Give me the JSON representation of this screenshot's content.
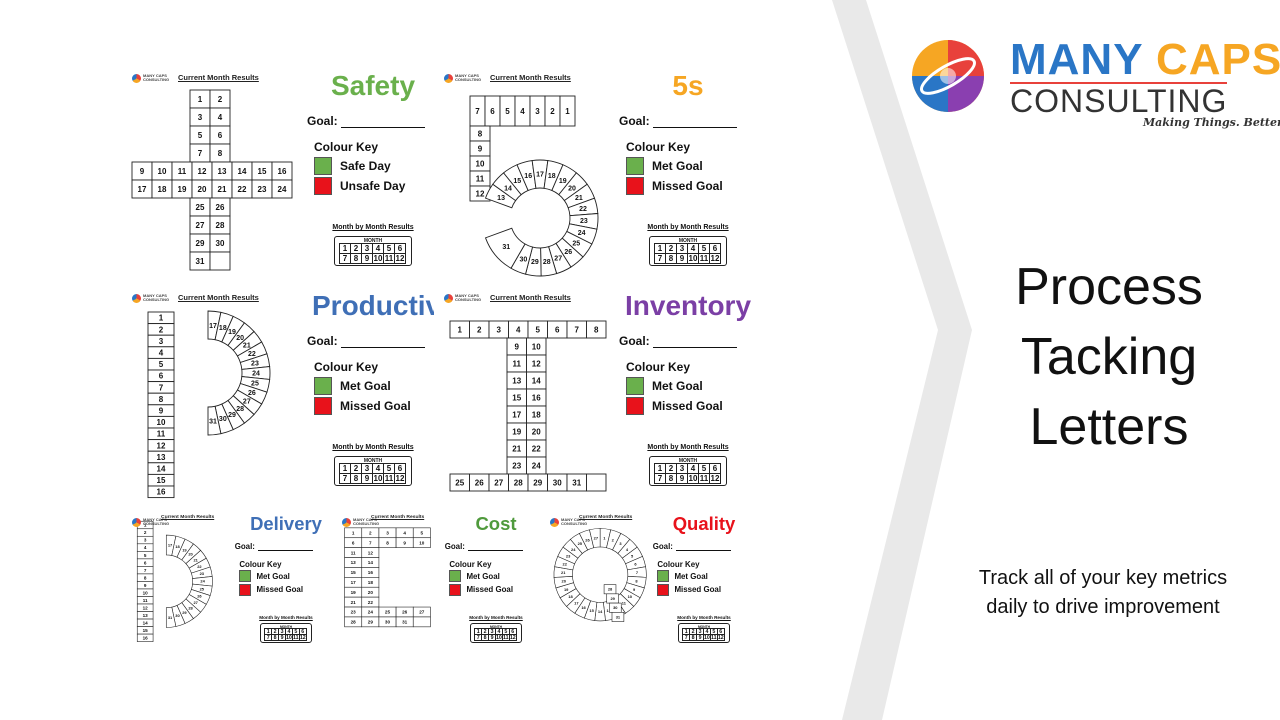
{
  "logo": {
    "word1": "MANY",
    "word2": "CAPS",
    "word3": "CONSULTING",
    "tagline": "Making Things. Better."
  },
  "headline": [
    "Process",
    "Tacking",
    "Letters"
  ],
  "subtitle": [
    "Track all of your key metrics",
    "daily to drive improvement"
  ],
  "colors": {
    "green": "#6ab04c",
    "red": "#e8121b",
    "chevron": "#e9e9e9"
  },
  "panel_common": {
    "current_month": "Current Month Results",
    "goal_label": "Goal:",
    "key_label": "Colour Key",
    "month_by_month": "Month by Month Results",
    "month_label": "MONTH",
    "months_row1": [
      "1",
      "2",
      "3",
      "4",
      "5",
      "6"
    ],
    "months_row2": [
      "7",
      "8",
      "9",
      "10",
      "11",
      "12"
    ],
    "mini_logo": "MANY CAPS CONSULTING"
  },
  "panels": [
    {
      "id": "safety",
      "title": "Safety",
      "title_color": "#6ab04c",
      "key_green": "Safe Day",
      "key_red": "Unsafe Day"
    },
    {
      "id": "5s",
      "title": "5s",
      "title_color": "#f6a623",
      "key_green": "Met Goal",
      "key_red": "Missed Goal"
    },
    {
      "id": "productivity",
      "title": "Productivity",
      "title_color": "#3f6fb6",
      "key_green": "Met Goal",
      "key_red": "Missed Goal"
    },
    {
      "id": "inventory",
      "title": "Inventory",
      "title_color": "#7b3fa5",
      "key_green": "Met Goal",
      "key_red": "Missed Goal"
    },
    {
      "id": "delivery",
      "title": "Delivery",
      "title_color": "#3f6fb6",
      "key_green": "Met Goal",
      "key_red": "Missed Goal"
    },
    {
      "id": "cost",
      "title": "Cost",
      "title_color": "#4f9a3c",
      "key_green": "Met Goal",
      "key_red": "Missed Goal"
    },
    {
      "id": "quality",
      "title": "Quality",
      "title_color": "#e8121b",
      "key_green": "Met Goal",
      "key_red": "Missed Goal"
    }
  ]
}
